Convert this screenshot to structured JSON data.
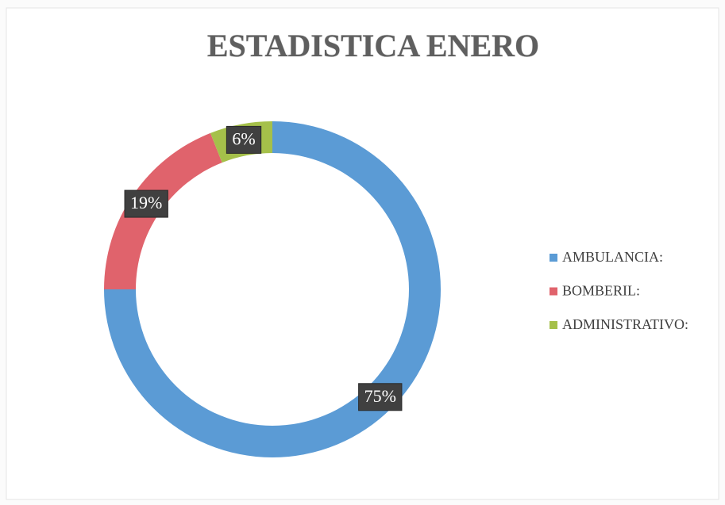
{
  "chart_data": {
    "type": "donut",
    "title": "ESTADISTICA ENERO",
    "categories": [
      "AMBULANCIA:",
      "BOMBERIL:",
      "ADMINISTRATIVO:"
    ],
    "values": [
      75,
      19,
      6
    ],
    "value_labels": [
      "75%",
      "19%",
      "6%"
    ],
    "colors": [
      "#5b9bd5",
      "#e0636c",
      "#a5c04a"
    ],
    "legend": "right"
  }
}
